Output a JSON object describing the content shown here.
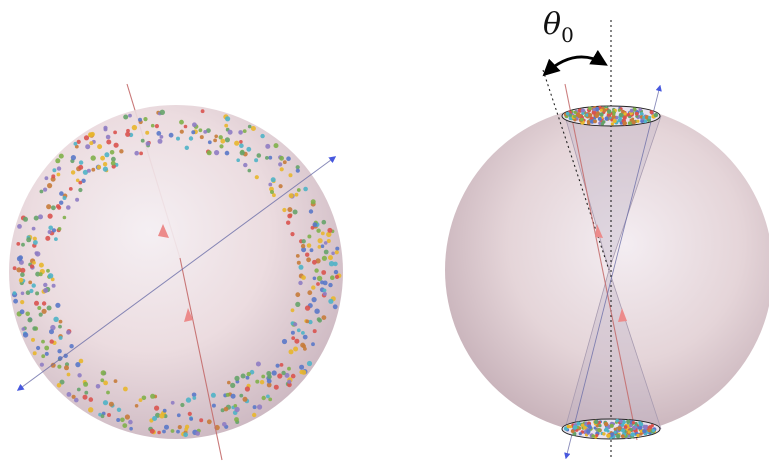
{
  "figure": {
    "label_main": "θ",
    "label_sub": "0",
    "colors": {
      "sphere_fill": "#ecdde0",
      "sphere_edge": "#d9c9cf",
      "axis_red": "#c46b6b",
      "arrow_blue": "#1a2fd6",
      "arrow_red": "#ec8a8a",
      "cone_fill": "#b9b0c2",
      "angle_arrow": "#000000"
    },
    "dot_colors": [
      "#5a78c8",
      "#e8b62c",
      "#d9534f",
      "#7fb04a",
      "#4fb3c7",
      "#c77b3a",
      "#8e7cc3",
      "#66a36a"
    ]
  }
}
